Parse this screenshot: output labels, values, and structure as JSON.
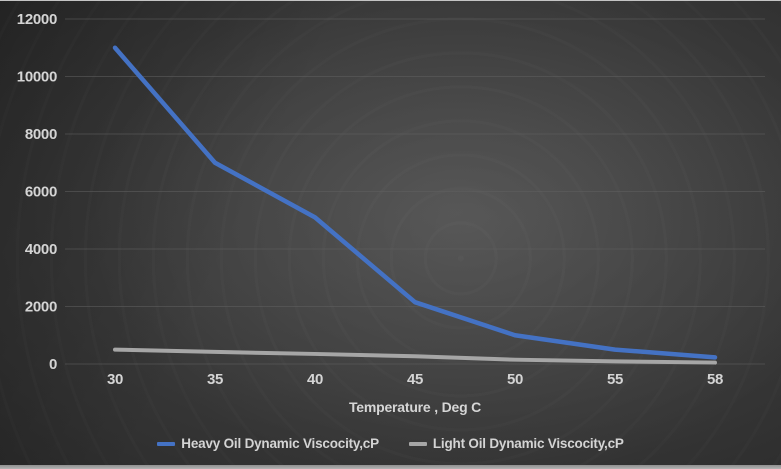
{
  "chart_data": {
    "type": "line",
    "title": "",
    "xlabel": "Temperature , Deg C",
    "ylabel": "",
    "categories": [
      "30",
      "35",
      "40",
      "45",
      "50",
      "55",
      "58"
    ],
    "y_ticks": [
      0,
      2000,
      4000,
      6000,
      8000,
      10000,
      12000
    ],
    "ylim": [
      0,
      12000
    ],
    "grid": "horizontal",
    "legend_position": "bottom",
    "series": [
      {
        "name": "Heavy Oil Dynamic Viscocity,cP",
        "color": "#4472c4",
        "values": [
          11000,
          7000,
          5100,
          2150,
          1000,
          500,
          230
        ]
      },
      {
        "name": "Light Oil Dynamic Viscocity,cP",
        "color": "#a6a6a6",
        "values": [
          500,
          420,
          350,
          270,
          150,
          90,
          50
        ]
      }
    ],
    "text_color": "#d4d4d4",
    "gridline_color": "#606060",
    "background_color": "#3a3a3a"
  }
}
